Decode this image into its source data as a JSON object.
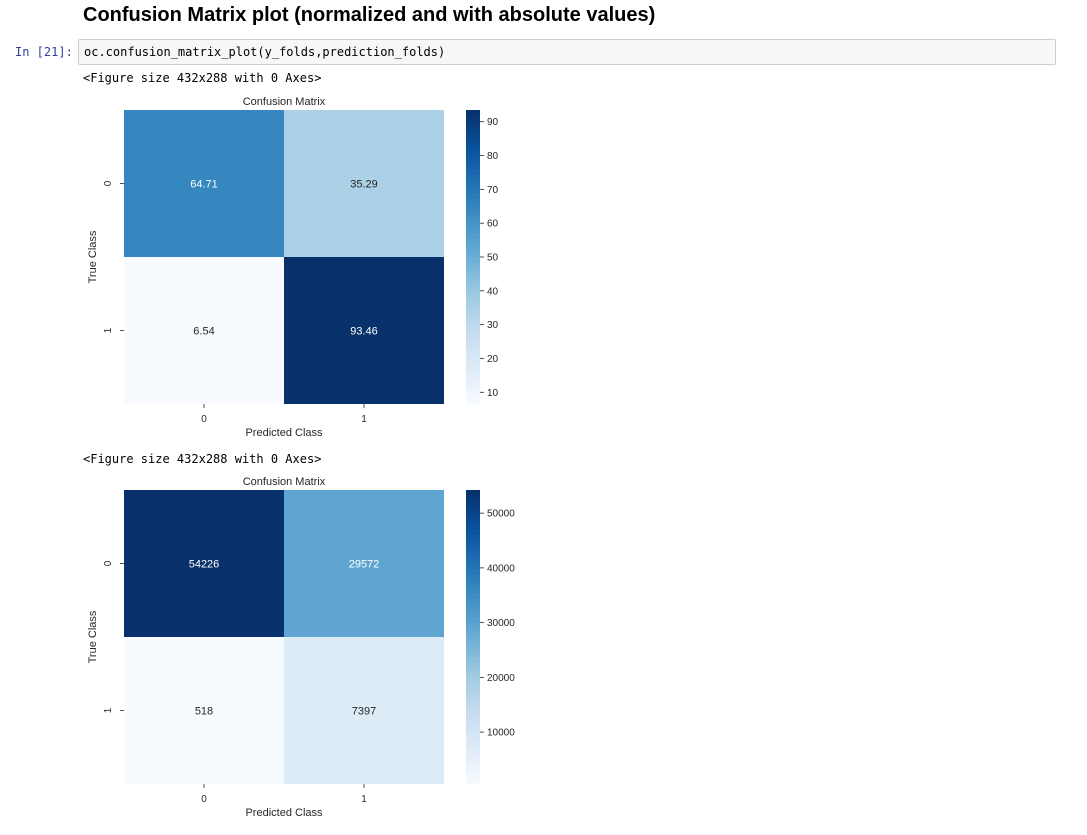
{
  "notebook": {
    "heading": "Confusion Matrix plot (normalized and with absolute values)",
    "cell_prompt": "In [21]:",
    "code": "oc.confusion_matrix_plot(y_folds,prediction_folds)",
    "outputs": [
      "<Figure size 432x288 with 0 Axes>",
      "<Figure size 432x288 with 0 Axes>"
    ]
  },
  "colors": {
    "cmap": [
      "#f7fbff",
      "#deebf7",
      "#c6dbef",
      "#9ecae1",
      "#6baed6",
      "#4292c6",
      "#2171b5",
      "#08519c",
      "#08306b"
    ]
  },
  "chart_data": [
    {
      "type": "heatmap",
      "title": "Confusion Matrix",
      "xlabel": "Predicted Class",
      "ylabel": "True Class",
      "x_categories": [
        "0",
        "1"
      ],
      "y_categories": [
        "0",
        "1"
      ],
      "values": [
        [
          64.71,
          35.29
        ],
        [
          6.54,
          93.46
        ]
      ],
      "labels": [
        [
          "64.71",
          "35.29"
        ],
        [
          "6.54",
          "93.46"
        ]
      ],
      "colorbar": {
        "min": 6.54,
        "max": 93.46,
        "ticks": [
          10,
          20,
          30,
          40,
          50,
          60,
          70,
          80,
          90
        ]
      }
    },
    {
      "type": "heatmap",
      "title": "Confusion Matrix",
      "xlabel": "Predicted Class",
      "ylabel": "True Class",
      "x_categories": [
        "0",
        "1"
      ],
      "y_categories": [
        "0",
        "1"
      ],
      "values": [
        [
          54226,
          29572
        ],
        [
          518,
          7397
        ]
      ],
      "labels": [
        [
          "54226",
          "29572"
        ],
        [
          "518",
          "7397"
        ]
      ],
      "colorbar": {
        "min": 518,
        "max": 54226,
        "ticks": [
          10000,
          20000,
          30000,
          40000,
          50000
        ]
      }
    }
  ]
}
